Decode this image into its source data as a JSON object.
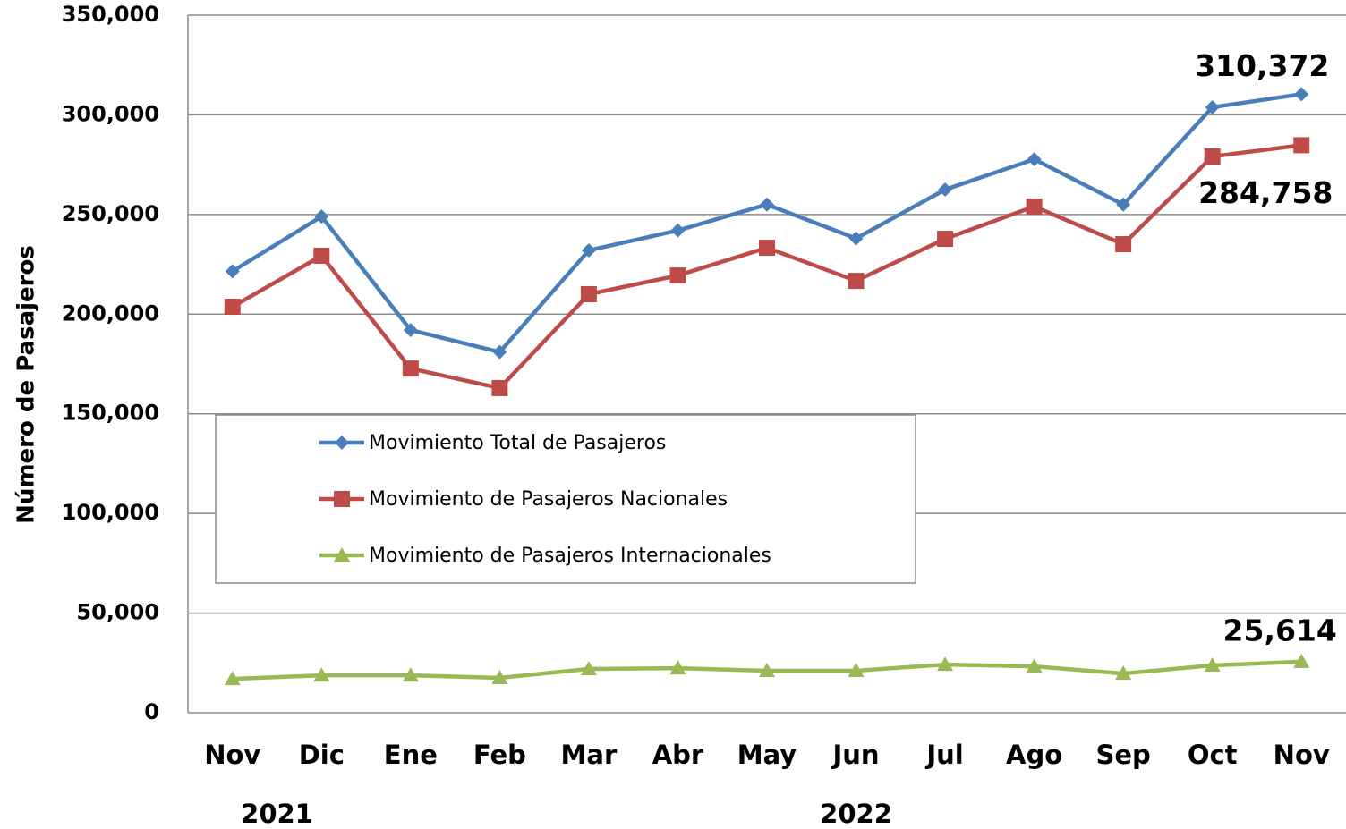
{
  "chart_data": {
    "type": "line",
    "ylabel": "Número de Pasajeros",
    "categories": [
      "Nov",
      "Dic",
      "Ene",
      "Feb",
      "Mar",
      "Abr",
      "May",
      "Jun",
      "Jul",
      "Ago",
      "Sep",
      "Oct",
      "Nov"
    ],
    "years": [
      "2021",
      "2022"
    ],
    "ylim": [
      0,
      350000
    ],
    "yticks": [
      0,
      {
        "value": 50000,
        "label": "50,000"
      },
      {
        "value": 100000,
        "label": "100,000"
      },
      {
        "value": 150000,
        "label": "150,000"
      },
      {
        "value": 200000,
        "label": "200,000"
      },
      {
        "value": 250000,
        "label": "250,000"
      },
      {
        "value": 300000,
        "label": "300,000"
      },
      {
        "value": 350000,
        "label": "350,000"
      }
    ],
    "grid": true,
    "legend": "center-left",
    "series": [
      {
        "name": "Movimiento Total de Pasajeros",
        "color": "#4a7ebb",
        "marker": "diamond",
        "values": [
          221500,
          249000,
          192000,
          181000,
          232000,
          242000,
          255000,
          238000,
          262500,
          277700,
          255000,
          303800,
          310372
        ],
        "value_labels": [
          null,
          null,
          null,
          null,
          null,
          null,
          null,
          null,
          null,
          null,
          null,
          null,
          "310,372"
        ]
      },
      {
        "name": "Movimiento de Pasajeros Nacionales",
        "color": "#be4b48",
        "marker": "square",
        "values": [
          203700,
          229300,
          172700,
          162900,
          210000,
          219400,
          233300,
          216700,
          237800,
          254000,
          235100,
          279100,
          284758
        ],
        "value_labels": [
          null,
          null,
          null,
          null,
          null,
          null,
          null,
          null,
          null,
          null,
          null,
          null,
          "284,758"
        ]
      },
      {
        "name": "Movimiento de Pasajeros Internacionales",
        "color": "#98b954",
        "marker": "triangle",
        "values": [
          17000,
          18800,
          18800,
          17500,
          22000,
          22400,
          21100,
          21100,
          24200,
          23300,
          19700,
          23800,
          25614
        ],
        "value_labels": [
          null,
          null,
          null,
          null,
          null,
          null,
          null,
          null,
          null,
          null,
          null,
          null,
          "25,614"
        ]
      }
    ]
  }
}
